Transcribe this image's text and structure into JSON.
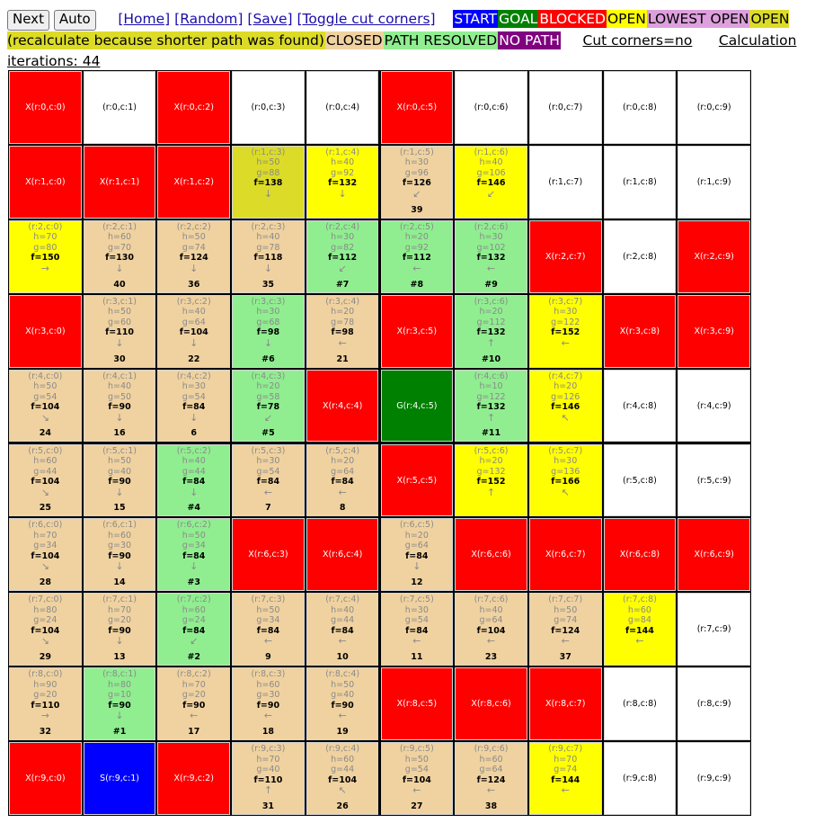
{
  "toolbar": {
    "next": "Next",
    "auto": "Auto",
    "links": [
      "[Home]",
      "[Random]",
      "[Save]",
      "[Toggle cut corners]"
    ],
    "legend": [
      {
        "label": "START",
        "bg": "#0000ff",
        "fg": "#ffffff"
      },
      {
        "label": "GOAL",
        "bg": "#008000",
        "fg": "#ffffff"
      },
      {
        "label": "BLOCKED",
        "bg": "#ff0000",
        "fg": "#ffffff"
      },
      {
        "label": "OPEN",
        "bg": "#ffff00",
        "fg": "#000000"
      },
      {
        "label": "LOWEST OPEN",
        "bg": "#dda0dd",
        "fg": "#000000"
      },
      {
        "label": "OPEN (recalculate because shorter path was found)",
        "bg": "#dcdc28",
        "fg": "#000000"
      },
      {
        "label": "CLOSED",
        "bg": "#f0d2a0",
        "fg": "#000000"
      },
      {
        "label": "PATH RESOLVED",
        "bg": "#90ee90",
        "fg": "#000000"
      },
      {
        "label": "NO PATH",
        "bg": "#800080",
        "fg": "#ffffff"
      }
    ],
    "cut_corners": "Cut corners=no",
    "iterations": "Calculation iterations: 44"
  },
  "colors": {
    "X": "#ff0000",
    "S": "#0000ff",
    "G": "#008000",
    "E": "#ffffff",
    "O": "#ffff00",
    "R": "#dcdc28",
    "C": "#f0d2a0",
    "P": "#90ee90"
  },
  "grid": [
    [
      {
        "t": "X",
        "label": "X(r:0,c:0)"
      },
      {
        "t": "E",
        "label": "(r:0,c:1)"
      },
      {
        "t": "X",
        "label": "X(r:0,c:2)"
      },
      {
        "t": "E",
        "label": "(r:0,c:3)"
      },
      {
        "t": "E",
        "label": "(r:0,c:4)"
      },
      {
        "t": "X",
        "label": "X(r:0,c:5)"
      },
      {
        "t": "E",
        "label": "(r:0,c:6)"
      },
      {
        "t": "E",
        "label": "(r:0,c:7)"
      },
      {
        "t": "E",
        "label": "(r:0,c:8)"
      },
      {
        "t": "E",
        "label": "(r:0,c:9)"
      }
    ],
    [
      {
        "t": "X",
        "label": "X(r:1,c:0)"
      },
      {
        "t": "X",
        "label": "X(r:1,c:1)"
      },
      {
        "t": "X",
        "label": "X(r:1,c:2)"
      },
      {
        "t": "R",
        "label": "(r:1,c:3)",
        "h": "h=50",
        "g": "g=88",
        "f": "f=138",
        "a": "↓",
        "n": ""
      },
      {
        "t": "O",
        "label": "(r:1,c:4)",
        "h": "h=40",
        "g": "g=92",
        "f": "f=132",
        "a": "↓",
        "n": ""
      },
      {
        "t": "C",
        "label": "(r:1,c:5)",
        "h": "h=30",
        "g": "g=96",
        "f": "f=126",
        "a": "↙",
        "n": "39"
      },
      {
        "t": "O",
        "label": "(r:1,c:6)",
        "h": "h=40",
        "g": "g=106",
        "f": "f=146",
        "a": "↙",
        "n": ""
      },
      {
        "t": "E",
        "label": "(r:1,c:7)"
      },
      {
        "t": "E",
        "label": "(r:1,c:8)"
      },
      {
        "t": "E",
        "label": "(r:1,c:9)"
      }
    ],
    [
      {
        "t": "O",
        "label": "(r:2,c:0)",
        "h": "h=70",
        "g": "g=80",
        "f": "f=150",
        "a": "→",
        "n": ""
      },
      {
        "t": "C",
        "label": "(r:2,c:1)",
        "h": "h=60",
        "g": "g=70",
        "f": "f=130",
        "a": "↓",
        "n": "40"
      },
      {
        "t": "C",
        "label": "(r:2,c:2)",
        "h": "h=50",
        "g": "g=74",
        "f": "f=124",
        "a": "↓",
        "n": "36"
      },
      {
        "t": "C",
        "label": "(r:2,c:3)",
        "h": "h=40",
        "g": "g=78",
        "f": "f=118",
        "a": "↓",
        "n": "35"
      },
      {
        "t": "P",
        "label": "(r:2,c:4)",
        "h": "h=30",
        "g": "g=82",
        "f": "f=112",
        "a": "↙",
        "n": "#7"
      },
      {
        "t": "P",
        "label": "(r:2,c:5)",
        "h": "h=20",
        "g": "g=92",
        "f": "f=112",
        "a": "←",
        "n": "#8"
      },
      {
        "t": "P",
        "label": "(r:2,c:6)",
        "h": "h=30",
        "g": "g=102",
        "f": "f=132",
        "a": "←",
        "n": "#9"
      },
      {
        "t": "X",
        "label": "X(r:2,c:7)"
      },
      {
        "t": "E",
        "label": "(r:2,c:8)"
      },
      {
        "t": "X",
        "label": "X(r:2,c:9)"
      }
    ],
    [
      {
        "t": "X",
        "label": "X(r:3,c:0)"
      },
      {
        "t": "C",
        "label": "(r:3,c:1)",
        "h": "h=50",
        "g": "g=60",
        "f": "f=110",
        "a": "↓",
        "n": "30"
      },
      {
        "t": "C",
        "label": "(r:3,c:2)",
        "h": "h=40",
        "g": "g=64",
        "f": "f=104",
        "a": "↓",
        "n": "22"
      },
      {
        "t": "P",
        "label": "(r:3,c:3)",
        "h": "h=30",
        "g": "g=68",
        "f": "f=98",
        "a": "↓",
        "n": "#6"
      },
      {
        "t": "C",
        "label": "(r:3,c:4)",
        "h": "h=20",
        "g": "g=78",
        "f": "f=98",
        "a": "←",
        "n": "21"
      },
      {
        "t": "X",
        "label": "X(r:3,c:5)"
      },
      {
        "t": "P",
        "label": "(r:3,c:6)",
        "h": "h=20",
        "g": "g=112",
        "f": "f=132",
        "a": "↑",
        "n": "#10"
      },
      {
        "t": "O",
        "label": "(r:3,c:7)",
        "h": "h=30",
        "g": "g=122",
        "f": "f=152",
        "a": "←",
        "n": ""
      },
      {
        "t": "X",
        "label": "X(r:3,c:8)"
      },
      {
        "t": "X",
        "label": "X(r:3,c:9)"
      }
    ],
    [
      {
        "t": "C",
        "label": "(r:4,c:0)",
        "h": "h=50",
        "g": "g=54",
        "f": "f=104",
        "a": "↘",
        "n": "24"
      },
      {
        "t": "C",
        "label": "(r:4,c:1)",
        "h": "h=40",
        "g": "g=50",
        "f": "f=90",
        "a": "↓",
        "n": "16"
      },
      {
        "t": "C",
        "label": "(r:4,c:2)",
        "h": "h=30",
        "g": "g=54",
        "f": "f=84",
        "a": "↓",
        "n": "6"
      },
      {
        "t": "P",
        "label": "(r:4,c:3)",
        "h": "h=20",
        "g": "g=58",
        "f": "f=78",
        "a": "↙",
        "n": "#5"
      },
      {
        "t": "X",
        "label": "X(r:4,c:4)"
      },
      {
        "t": "G",
        "label": "G(r:4,c:5)"
      },
      {
        "t": "P",
        "label": "(r:4,c:6)",
        "h": "h=10",
        "g": "g=122",
        "f": "f=132",
        "a": "↑",
        "n": "#11"
      },
      {
        "t": "O",
        "label": "(r:4,c:7)",
        "h": "h=20",
        "g": "g=126",
        "f": "f=146",
        "a": "↖",
        "n": ""
      },
      {
        "t": "E",
        "label": "(r:4,c:8)"
      },
      {
        "t": "E",
        "label": "(r:4,c:9)"
      }
    ],
    [
      {
        "t": "C",
        "label": "(r:5,c:0)",
        "h": "h=60",
        "g": "g=44",
        "f": "f=104",
        "a": "↘",
        "n": "25"
      },
      {
        "t": "C",
        "label": "(r:5,c:1)",
        "h": "h=50",
        "g": "g=40",
        "f": "f=90",
        "a": "↓",
        "n": "15"
      },
      {
        "t": "P",
        "label": "(r:5,c:2)",
        "h": "h=40",
        "g": "g=44",
        "f": "f=84",
        "a": "↓",
        "n": "#4"
      },
      {
        "t": "C",
        "label": "(r:5,c:3)",
        "h": "h=30",
        "g": "g=54",
        "f": "f=84",
        "a": "←",
        "n": "7"
      },
      {
        "t": "C",
        "label": "(r:5,c:4)",
        "h": "h=20",
        "g": "g=64",
        "f": "f=84",
        "a": "←",
        "n": "8"
      },
      {
        "t": "X",
        "label": "X(r:5,c:5)"
      },
      {
        "t": "O",
        "label": "(r:5,c:6)",
        "h": "h=20",
        "g": "g=132",
        "f": "f=152",
        "a": "↑",
        "n": ""
      },
      {
        "t": "O",
        "label": "(r:5,c:7)",
        "h": "h=30",
        "g": "g=136",
        "f": "f=166",
        "a": "↖",
        "n": ""
      },
      {
        "t": "E",
        "label": "(r:5,c:8)"
      },
      {
        "t": "E",
        "label": "(r:5,c:9)"
      }
    ],
    [
      {
        "t": "C",
        "label": "(r:6,c:0)",
        "h": "h=70",
        "g": "g=34",
        "f": "f=104",
        "a": "↘",
        "n": "28"
      },
      {
        "t": "C",
        "label": "(r:6,c:1)",
        "h": "h=60",
        "g": "g=30",
        "f": "f=90",
        "a": "↓",
        "n": "14"
      },
      {
        "t": "P",
        "label": "(r:6,c:2)",
        "h": "h=50",
        "g": "g=34",
        "f": "f=84",
        "a": "↓",
        "n": "#3"
      },
      {
        "t": "X",
        "label": "X(r:6,c:3)"
      },
      {
        "t": "X",
        "label": "X(r:6,c:4)"
      },
      {
        "t": "C",
        "label": "(r:6,c:5)",
        "h": "h=20",
        "g": "g=64",
        "f": "f=84",
        "a": "↓",
        "n": "12"
      },
      {
        "t": "X",
        "label": "X(r:6,c:6)"
      },
      {
        "t": "X",
        "label": "X(r:6,c:7)"
      },
      {
        "t": "X",
        "label": "X(r:6,c:8)"
      },
      {
        "t": "X",
        "label": "X(r:6,c:9)"
      }
    ],
    [
      {
        "t": "C",
        "label": "(r:7,c:0)",
        "h": "h=80",
        "g": "g=24",
        "f": "f=104",
        "a": "↘",
        "n": "29"
      },
      {
        "t": "C",
        "label": "(r:7,c:1)",
        "h": "h=70",
        "g": "g=20",
        "f": "f=90",
        "a": "↓",
        "n": "13"
      },
      {
        "t": "P",
        "label": "(r:7,c:2)",
        "h": "h=60",
        "g": "g=24",
        "f": "f=84",
        "a": "↙",
        "n": "#2"
      },
      {
        "t": "C",
        "label": "(r:7,c:3)",
        "h": "h=50",
        "g": "g=34",
        "f": "f=84",
        "a": "←",
        "n": "9"
      },
      {
        "t": "C",
        "label": "(r:7,c:4)",
        "h": "h=40",
        "g": "g=44",
        "f": "f=84",
        "a": "←",
        "n": "10"
      },
      {
        "t": "C",
        "label": "(r:7,c:5)",
        "h": "h=30",
        "g": "g=54",
        "f": "f=84",
        "a": "←",
        "n": "11"
      },
      {
        "t": "C",
        "label": "(r:7,c:6)",
        "h": "h=40",
        "g": "g=64",
        "f": "f=104",
        "a": "←",
        "n": "23"
      },
      {
        "t": "C",
        "label": "(r:7,c:7)",
        "h": "h=50",
        "g": "g=74",
        "f": "f=124",
        "a": "←",
        "n": "37"
      },
      {
        "t": "O",
        "label": "(r:7,c:8)",
        "h": "h=60",
        "g": "g=84",
        "f": "f=144",
        "a": "←",
        "n": ""
      },
      {
        "t": "E",
        "label": "(r:7,c:9)"
      }
    ],
    [
      {
        "t": "C",
        "label": "(r:8,c:0)",
        "h": "h=90",
        "g": "g=20",
        "f": "f=110",
        "a": "→",
        "n": "32"
      },
      {
        "t": "P",
        "label": "(r:8,c:1)",
        "h": "h=80",
        "g": "g=10",
        "f": "f=90",
        "a": "↓",
        "n": "#1"
      },
      {
        "t": "C",
        "label": "(r:8,c:2)",
        "h": "h=70",
        "g": "g=20",
        "f": "f=90",
        "a": "←",
        "n": "17"
      },
      {
        "t": "C",
        "label": "(r:8,c:3)",
        "h": "h=60",
        "g": "g=30",
        "f": "f=90",
        "a": "←",
        "n": "18"
      },
      {
        "t": "C",
        "label": "(r:8,c:4)",
        "h": "h=50",
        "g": "g=40",
        "f": "f=90",
        "a": "←",
        "n": "19"
      },
      {
        "t": "X",
        "label": "X(r:8,c:5)"
      },
      {
        "t": "X",
        "label": "X(r:8,c:6)"
      },
      {
        "t": "X",
        "label": "X(r:8,c:7)"
      },
      {
        "t": "E",
        "label": "(r:8,c:8)"
      },
      {
        "t": "E",
        "label": "(r:8,c:9)"
      }
    ],
    [
      {
        "t": "X",
        "label": "X(r:9,c:0)"
      },
      {
        "t": "S",
        "label": "S(r:9,c:1)"
      },
      {
        "t": "X",
        "label": "X(r:9,c:2)"
      },
      {
        "t": "C",
        "label": "(r:9,c:3)",
        "h": "h=70",
        "g": "g=40",
        "f": "f=110",
        "a": "↑",
        "n": "31"
      },
      {
        "t": "C",
        "label": "(r:9,c:4)",
        "h": "h=60",
        "g": "g=44",
        "f": "f=104",
        "a": "↖",
        "n": "26"
      },
      {
        "t": "C",
        "label": "(r:9,c:5)",
        "h": "h=50",
        "g": "g=54",
        "f": "f=104",
        "a": "←",
        "n": "27"
      },
      {
        "t": "C",
        "label": "(r:9,c:6)",
        "h": "h=60",
        "g": "g=64",
        "f": "f=124",
        "a": "←",
        "n": "38"
      },
      {
        "t": "O",
        "label": "(r:9,c:7)",
        "h": "h=70",
        "g": "g=74",
        "f": "f=144",
        "a": "←",
        "n": ""
      },
      {
        "t": "E",
        "label": "(r:9,c:8)"
      },
      {
        "t": "E",
        "label": "(r:9,c:9)"
      }
    ]
  ]
}
